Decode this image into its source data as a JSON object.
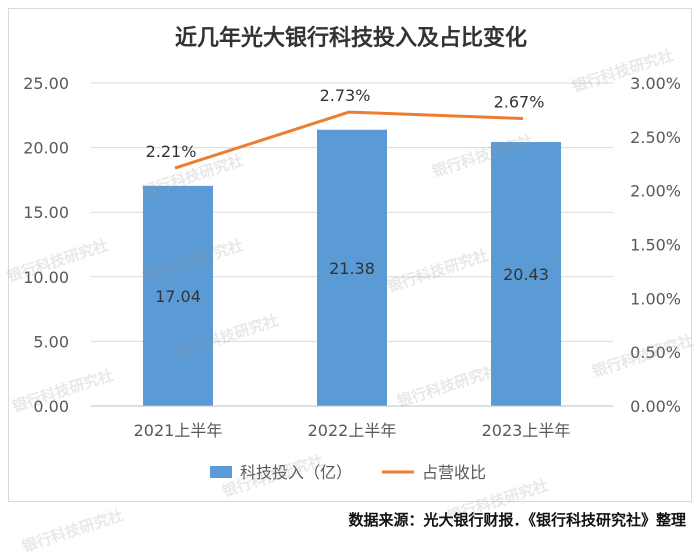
{
  "chart_data": {
    "type": "bar+line",
    "title": "近几年光大银行科技投入及占比变化",
    "categories": [
      "2021上半年",
      "2022上半年",
      "2023上半年"
    ],
    "series": [
      {
        "name": "科技投入（亿）",
        "type": "bar",
        "axis": "left",
        "values": [
          17.04,
          21.38,
          20.43
        ],
        "color": "#5b9bd5"
      },
      {
        "name": "占营收比",
        "type": "line",
        "axis": "right",
        "values": [
          2.21,
          2.73,
          2.67
        ],
        "unit": "%",
        "color": "#ed7d31"
      }
    ],
    "left_axis": {
      "ylim": [
        0,
        25
      ],
      "ticks": [
        "0.00",
        "5.00",
        "10.00",
        "15.00",
        "20.00",
        "25.00"
      ]
    },
    "right_axis": {
      "ylim": [
        0,
        3
      ],
      "ticks": [
        "0.00%",
        "0.50%",
        "1.00%",
        "1.50%",
        "2.00%",
        "2.50%",
        "3.00%"
      ]
    },
    "bar_labels": [
      "17.04",
      "21.38",
      "20.43"
    ],
    "line_labels": [
      "2.21%",
      "2.73%",
      "2.67%"
    ],
    "grid": true,
    "legend_position": "bottom"
  },
  "source_note": "数据来源：光大银行财报．《银行科技研究社》整理",
  "watermark": "银行科技研究社"
}
